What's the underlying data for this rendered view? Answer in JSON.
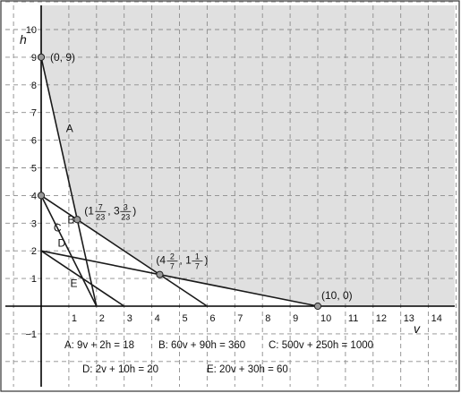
{
  "chart_data": {
    "type": "line",
    "xlabel": "v",
    "ylabel": "h",
    "xlim": [
      -1,
      15
    ],
    "ylim": [
      -2,
      11
    ],
    "grid": true,
    "x_ticks": [
      "1",
      "2",
      "3",
      "4",
      "5",
      "6",
      "7",
      "8",
      "9",
      "10",
      "11",
      "12",
      "13",
      "14"
    ],
    "x_tick_values": [
      1,
      2,
      3,
      4,
      5,
      6,
      7,
      8,
      9,
      10,
      11,
      12,
      13,
      14
    ],
    "y_ticks": [
      "−1",
      "1",
      "2",
      "3",
      "4",
      "5",
      "6",
      "7",
      "8",
      "9",
      "10"
    ],
    "y_tick_values": [
      -1,
      1,
      2,
      3,
      4,
      5,
      6,
      7,
      8,
      9,
      10
    ],
    "feasible_region": {
      "shaded": true,
      "color": "#e0e0e0",
      "vertices": [
        [
          0,
          9
        ],
        [
          1.304,
          3.13
        ],
        [
          4.286,
          1.143
        ],
        [
          10,
          0
        ]
      ]
    },
    "series": [
      {
        "name": "A",
        "equation": "A: 9v + 2h = 18",
        "points": [
          [
            0,
            9
          ],
          [
            2,
            0
          ]
        ],
        "label_at": [
          0.9,
          6.3
        ]
      },
      {
        "name": "B",
        "equation": "B: 60v + 90h = 360",
        "points": [
          [
            0,
            4
          ],
          [
            6,
            0
          ]
        ],
        "label_at": [
          0.95,
          3.0
        ]
      },
      {
        "name": "C",
        "equation": "C: 500v + 250h = 1000",
        "points": [
          [
            0,
            4
          ],
          [
            2,
            0
          ]
        ],
        "label_at": [
          0.45,
          2.7
        ]
      },
      {
        "name": "D",
        "equation": "D: 2v + 10h = 20",
        "points": [
          [
            0,
            2
          ],
          [
            10,
            0
          ]
        ],
        "label_at": [
          0.6,
          2.15
        ]
      },
      {
        "name": "E",
        "equation": "E: 20v + 30h = 60",
        "points": [
          [
            0,
            2
          ],
          [
            3,
            0
          ]
        ],
        "label_at": [
          1.05,
          0.7
        ]
      }
    ],
    "points": [
      {
        "label": "(0, 9)",
        "x": 0,
        "y": 9
      },
      {
        "label": "(1 7/23, 3 3/23)",
        "x": 1.304,
        "y": 3.13,
        "whole_x": "1",
        "num_x": "7",
        "den_x": "23",
        "whole_y": "3",
        "num_y": "3",
        "den_y": "23"
      },
      {
        "label": "(4 2/7, 1 1/7)",
        "x": 4.286,
        "y": 1.143,
        "whole_x": "4",
        "num_x": "2",
        "den_x": "7",
        "whole_y": "1",
        "num_y": "1",
        "den_y": "7"
      },
      {
        "label": "(10, 0)",
        "x": 10,
        "y": 0
      },
      {
        "x": 0,
        "y": 4
      }
    ],
    "legend_placement": "bottom",
    "colors": {
      "line": "#1a1a1a",
      "grid": "#8c8c8c",
      "point_fill": "#999999",
      "shade": "#e0e0e0"
    }
  }
}
